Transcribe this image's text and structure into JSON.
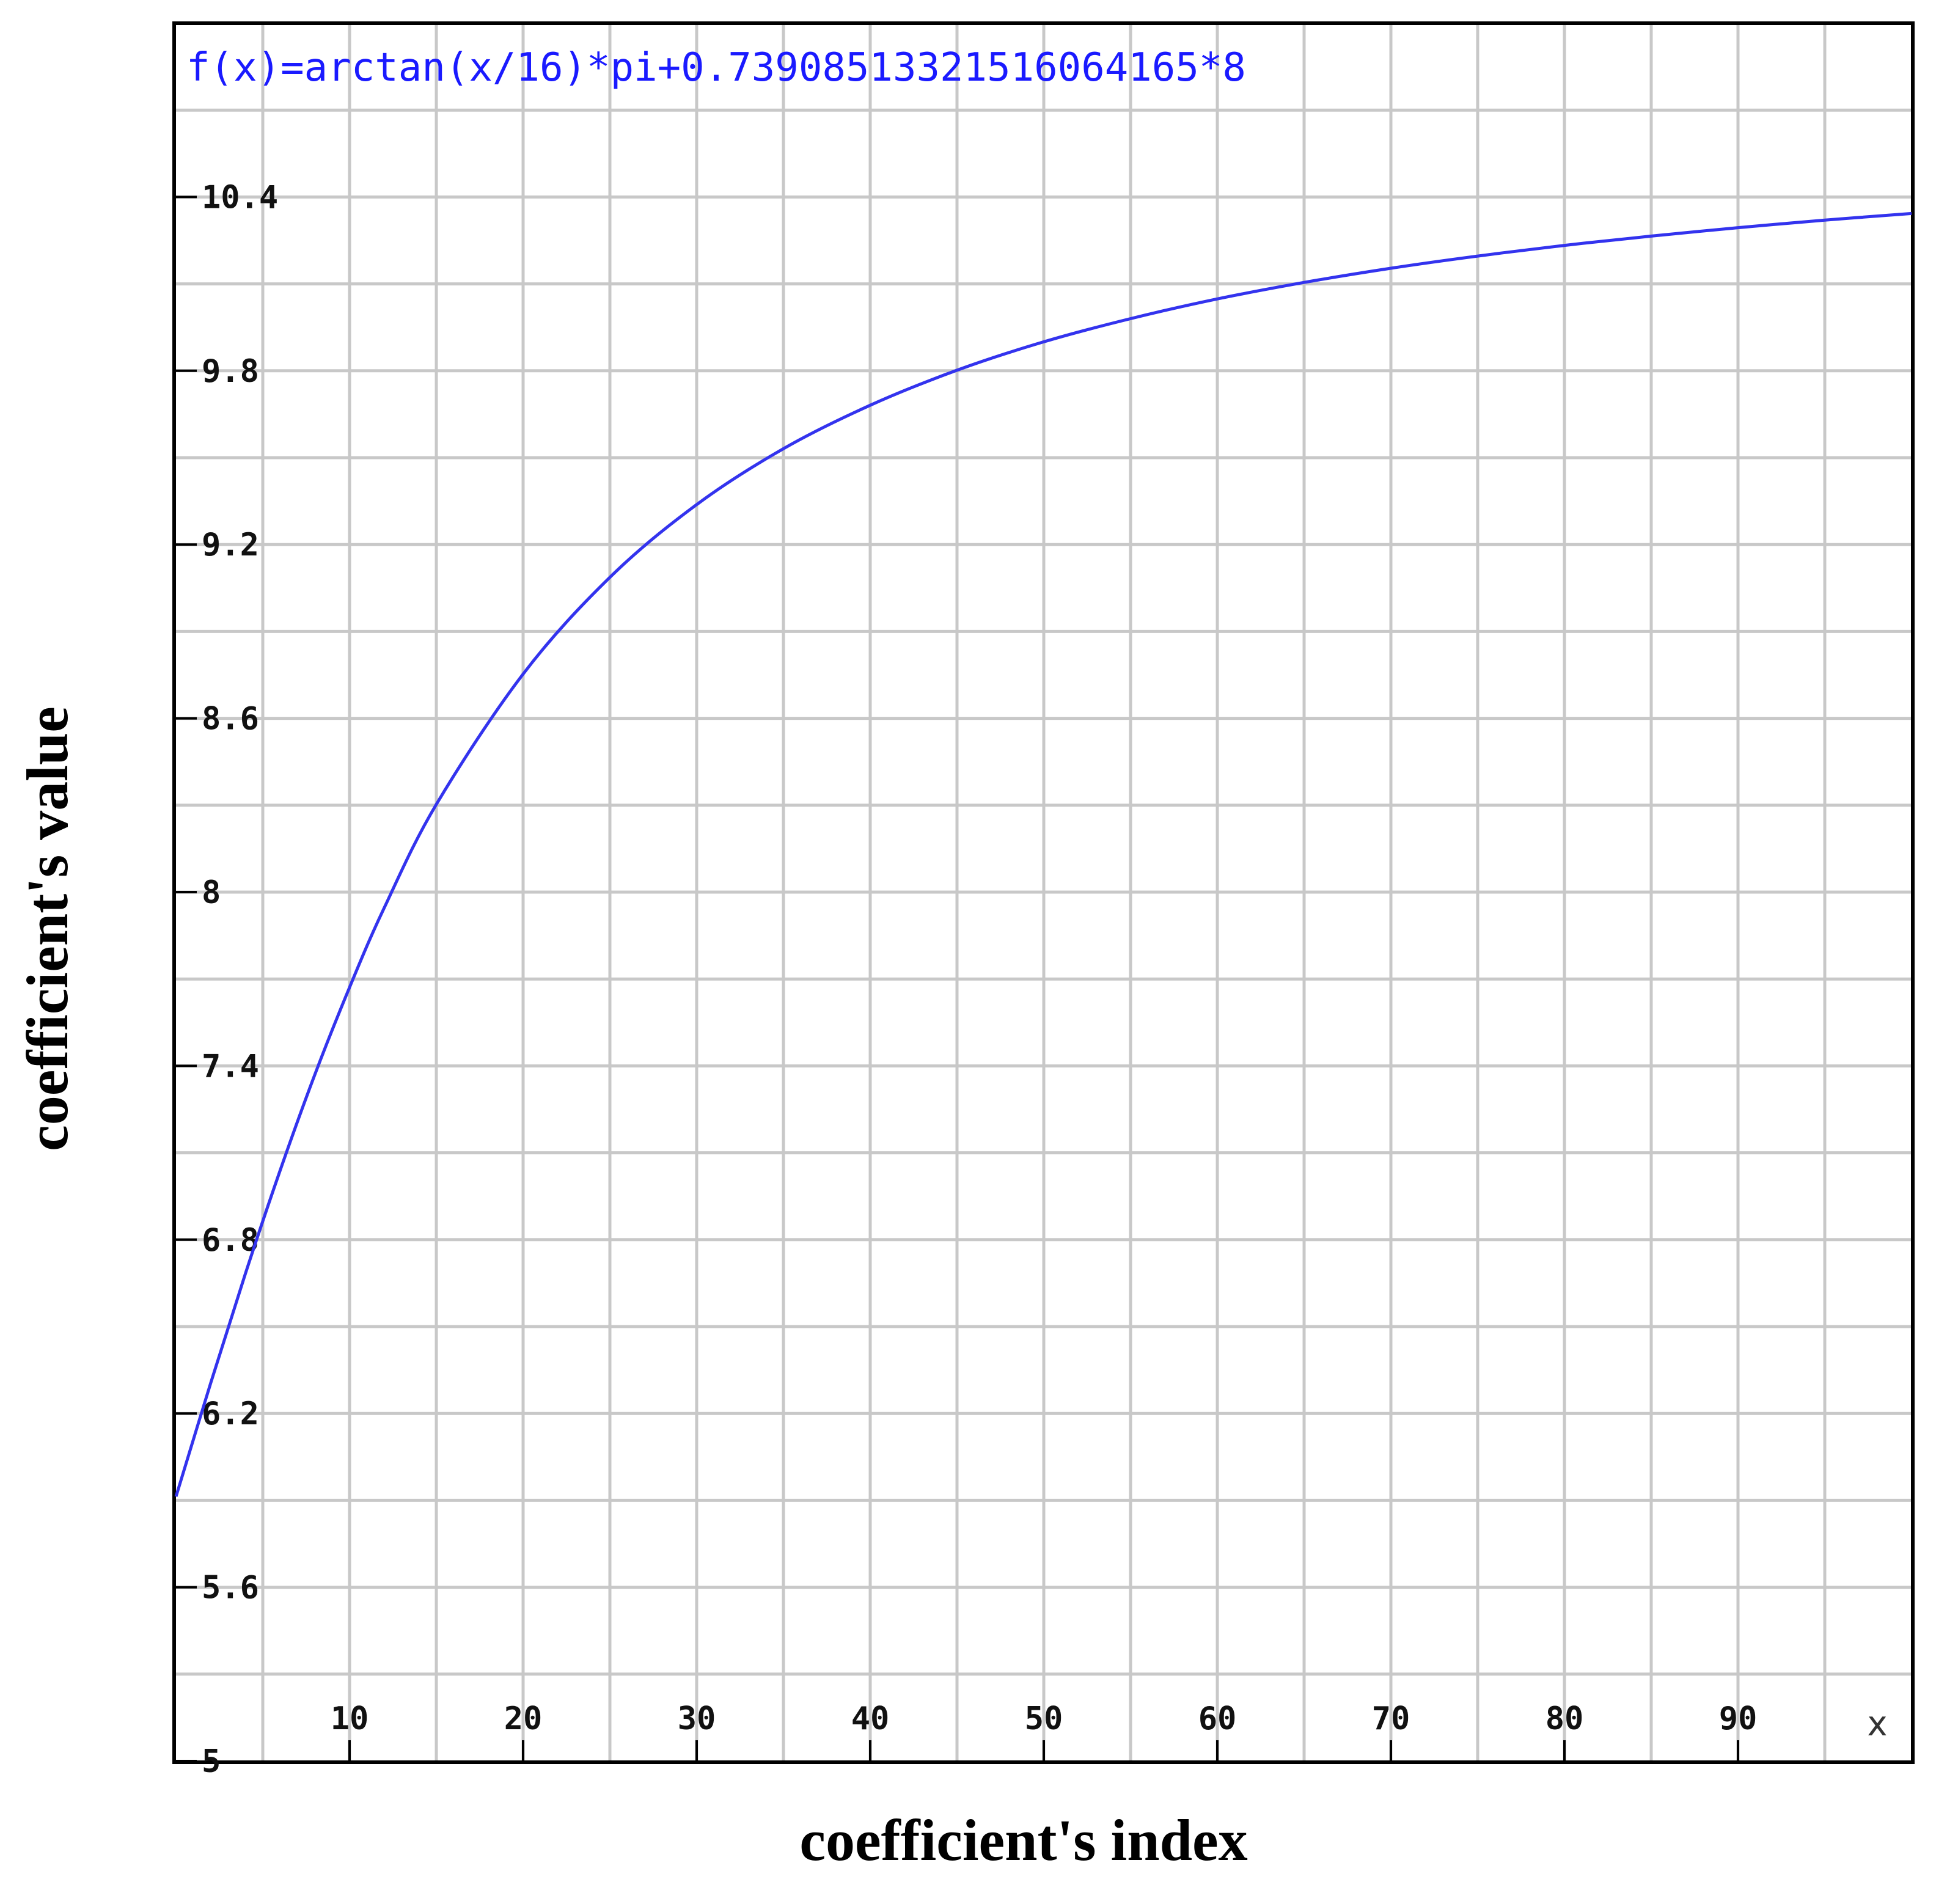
{
  "chart_data": {
    "type": "line",
    "title": "f(x)=arctan(x/16)*pi+0.7390851332151606 4165*8",
    "function_label": "f(x)=arctan(x/16)*pi+0.73908513321516064165*8",
    "xlabel": "coefficient's index",
    "ylabel": "coefficient's value",
    "x_axis_symbol": "x",
    "xlim": [
      0,
      100
    ],
    "ylim": [
      5,
      11
    ],
    "x_ticks": [
      {
        "value": 10,
        "label": "10"
      },
      {
        "value": 20,
        "label": "20"
      },
      {
        "value": 30,
        "label": "30"
      },
      {
        "value": 40,
        "label": "40"
      },
      {
        "value": 50,
        "label": "50"
      },
      {
        "value": 60,
        "label": "60"
      },
      {
        "value": 70,
        "label": "70"
      },
      {
        "value": 80,
        "label": "80"
      },
      {
        "value": 90,
        "label": "90"
      }
    ],
    "y_ticks": [
      {
        "value": 5,
        "label": "5"
      },
      {
        "value": 5.6,
        "label": "5.6"
      },
      {
        "value": 6.2,
        "label": "6.2"
      },
      {
        "value": 6.8,
        "label": "6.8"
      },
      {
        "value": 7.4,
        "label": "7.4"
      },
      {
        "value": 8,
        "label": "8"
      },
      {
        "value": 8.6,
        "label": "8.6"
      },
      {
        "value": 9.2,
        "label": "9.2"
      },
      {
        "value": 9.8,
        "label": "9.8"
      },
      {
        "value": 10.4,
        "label": "10.4"
      }
    ],
    "grid": true,
    "series": [
      {
        "color": "#3333ee",
        "x": [
          0,
          2,
          4,
          6,
          8,
          10,
          12,
          15,
          20,
          25,
          30,
          35,
          40,
          45,
          50,
          55,
          60,
          65,
          70,
          75,
          80,
          85,
          90,
          95,
          100
        ],
        "y": [
          5.913,
          6.305,
          6.683,
          7.039,
          7.37,
          7.671,
          7.946,
          8.303,
          8.753,
          9.087,
          9.338,
          9.531,
          9.681,
          9.802,
          9.9,
          9.98,
          10.048,
          10.105,
          10.154,
          10.196,
          10.233,
          10.265,
          10.294,
          10.32,
          10.343
        ]
      }
    ],
    "colors": {
      "line": "#3333ee",
      "formula": "#1a1aff",
      "grid": "#c8c8c8",
      "axes": "#000000"
    }
  }
}
